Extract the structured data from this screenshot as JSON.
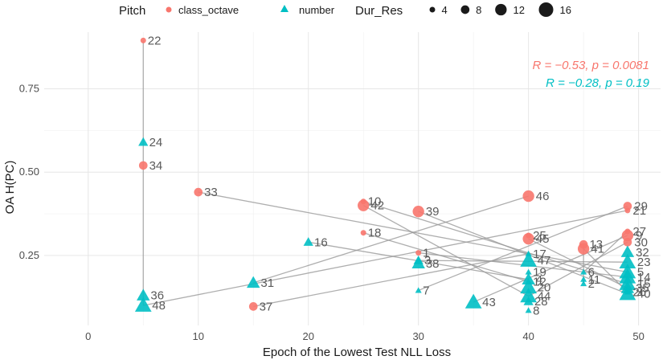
{
  "chart_data": {
    "type": "scatter",
    "xlabel": "Epoch of the Lowest Test NLL Loss",
    "ylabel": "OA H(PC)",
    "xlim": [
      -4,
      52
    ],
    "ylim": [
      0.04,
      0.92
    ],
    "x_ticks": [
      0,
      10,
      20,
      30,
      40,
      50
    ],
    "y_ticks": [
      0.25,
      0.5,
      0.75
    ],
    "grid": true,
    "legend": {
      "placement": "top",
      "shape_title": "Pitch",
      "shape_items": [
        {
          "label": "class_octave",
          "color": "#F8766D",
          "shape": "circle"
        },
        {
          "label": "number",
          "color": "#00BFC4",
          "shape": "triangle"
        }
      ],
      "size_title": "Dur_Res",
      "size_items": [
        4,
        8,
        12,
        16
      ]
    },
    "annotations": [
      {
        "text": "R = −0.53, p = 0.0081",
        "color": "#F8766D"
      },
      {
        "text": "R = −0.28, p = 0.19",
        "color": "#00BFC4"
      }
    ],
    "series": [
      {
        "name": "class_octave",
        "color": "#F8766D",
        "shape": "circle",
        "points": [
          {
            "label": "22",
            "x": 5,
            "y": 0.895,
            "size": 4
          },
          {
            "label": "34",
            "x": 5,
            "y": 0.52,
            "size": 8
          },
          {
            "label": "33",
            "x": 10,
            "y": 0.44,
            "size": 8
          },
          {
            "label": "10",
            "x": 25,
            "y": 0.412,
            "size": 4
          },
          {
            "label": "42",
            "x": 25,
            "y": 0.4,
            "size": 12
          },
          {
            "label": "18",
            "x": 25,
            "y": 0.318,
            "size": 4
          },
          {
            "label": "39",
            "x": 30,
            "y": 0.382,
            "size": 12
          },
          {
            "label": "1",
            "x": 30,
            "y": 0.258,
            "size": 4
          },
          {
            "label": "37",
            "x": 15,
            "y": 0.097,
            "size": 8
          },
          {
            "label": "46",
            "x": 40,
            "y": 0.428,
            "size": 12
          },
          {
            "label": "25",
            "x": 40,
            "y": 0.31,
            "size": 4
          },
          {
            "label": "45",
            "x": 40,
            "y": 0.3,
            "size": 12
          },
          {
            "label": "13",
            "x": 45,
            "y": 0.283,
            "size": 8
          },
          {
            "label": "41",
            "x": 45,
            "y": 0.27,
            "size": 12
          },
          {
            "label": "29",
            "x": 49,
            "y": 0.398,
            "size": 8
          },
          {
            "label": "21",
            "x": 49,
            "y": 0.385,
            "size": 4
          },
          {
            "label": "27",
            "x": 49,
            "y": 0.322,
            "size": 4
          },
          {
            "label": "9",
            "x": 49,
            "y": 0.31,
            "size": 12
          },
          {
            "label": "30",
            "x": 49,
            "y": 0.29,
            "size": 8
          }
        ]
      },
      {
        "name": "number",
        "color": "#00BFC4",
        "shape": "triangle",
        "points": [
          {
            "label": "24",
            "x": 5,
            "y": 0.59,
            "size": 8
          },
          {
            "label": "36",
            "x": 5,
            "y": 0.13,
            "size": 12
          },
          {
            "label": "48",
            "x": 5,
            "y": 0.1,
            "size": 16
          },
          {
            "label": "16",
            "x": 20,
            "y": 0.29,
            "size": 8
          },
          {
            "label": "31",
            "x": 15,
            "y": 0.168,
            "size": 12
          },
          {
            "label": "3",
            "x": 30,
            "y": 0.235,
            "size": 8
          },
          {
            "label": "38",
            "x": 30,
            "y": 0.226,
            "size": 12
          },
          {
            "label": "7",
            "x": 30,
            "y": 0.145,
            "size": 4
          },
          {
            "label": "43",
            "x": 35,
            "y": 0.11,
            "size": 16
          },
          {
            "label": "17",
            "x": 40,
            "y": 0.255,
            "size": 4
          },
          {
            "label": "47",
            "x": 40,
            "y": 0.235,
            "size": 16
          },
          {
            "label": "19",
            "x": 40,
            "y": 0.2,
            "size": 4
          },
          {
            "label": "4",
            "x": 40,
            "y": 0.178,
            "size": 12
          },
          {
            "label": "12",
            "x": 40,
            "y": 0.172,
            "size": 4
          },
          {
            "label": "20",
            "x": 40,
            "y": 0.155,
            "size": 16
          },
          {
            "label": "44",
            "x": 40,
            "y": 0.128,
            "size": 16
          },
          {
            "label": "28",
            "x": 40,
            "y": 0.112,
            "size": 8
          },
          {
            "label": "8",
            "x": 40,
            "y": 0.085,
            "size": 4
          },
          {
            "label": "11",
            "x": 45,
            "y": 0.178,
            "size": 4
          },
          {
            "label": "6",
            "x": 45,
            "y": 0.2,
            "size": 4
          },
          {
            "label": "2",
            "x": 45,
            "y": 0.165,
            "size": 4
          },
          {
            "label": "32",
            "x": 49,
            "y": 0.26,
            "size": 12
          },
          {
            "label": "23",
            "x": 49,
            "y": 0.23,
            "size": 16
          },
          {
            "label": "5",
            "x": 49,
            "y": 0.2,
            "size": 16
          },
          {
            "label": "14",
            "x": 49,
            "y": 0.185,
            "size": 16
          },
          {
            "label": "15",
            "x": 49,
            "y": 0.165,
            "size": 16
          },
          {
            "label": "35",
            "x": 49,
            "y": 0.152,
            "size": 12
          },
          {
            "label": "26",
            "x": 49,
            "y": 0.14,
            "size": 4
          },
          {
            "label": "40",
            "x": 49,
            "y": 0.135,
            "size": 16
          }
        ]
      }
    ],
    "connections": [
      [
        "22",
        "48"
      ],
      [
        "33",
        "5"
      ],
      [
        "10",
        "15"
      ],
      [
        "42",
        "44"
      ],
      [
        "18",
        "12"
      ],
      [
        "39",
        "40"
      ],
      [
        "1",
        "14"
      ],
      [
        "37",
        "17"
      ],
      [
        "46",
        "31"
      ],
      [
        "45",
        "35"
      ],
      [
        "41",
        "26"
      ],
      [
        "29",
        "7"
      ],
      [
        "21",
        "48"
      ],
      [
        "9",
        "43"
      ],
      [
        "30",
        "44"
      ],
      [
        "16",
        "4"
      ],
      [
        "3",
        "23"
      ],
      [
        "27",
        "6"
      ],
      [
        "13",
        "2"
      ]
    ]
  }
}
